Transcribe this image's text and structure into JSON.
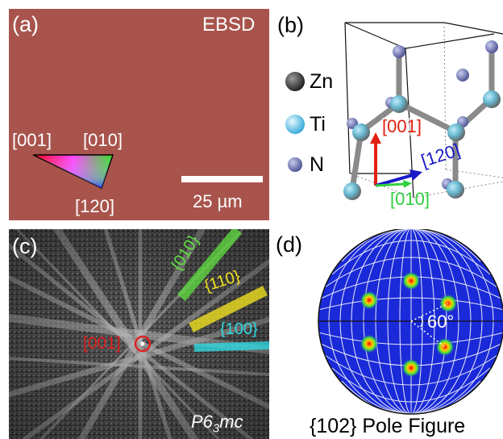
{
  "panel_a": {
    "label": "(a)",
    "tag": "EBSD",
    "ipf_labels": [
      "[001]",
      "[010]",
      "[120]"
    ],
    "scale_bar": "25 µm",
    "colors": {
      "background": "#a8544c",
      "bar": "#ffffff"
    }
  },
  "panel_b": {
    "label": "(b)",
    "legend": [
      {
        "name": "Zn",
        "color": "#3a3a3a"
      },
      {
        "name": "Ti",
        "color": "#58c8e8"
      },
      {
        "name": "N",
        "color": "#6870a8"
      }
    ],
    "axes": [
      {
        "label": "[001]",
        "color": "#e02010"
      },
      {
        "label": "[120]",
        "color": "#1818c8"
      },
      {
        "label": "[010]",
        "color": "#30d040"
      }
    ]
  },
  "panel_c": {
    "label": "(c)",
    "bands": [
      {
        "label": "{010}",
        "color": "#60e040"
      },
      {
        "label": "{110}",
        "color": "#f0e020"
      },
      {
        "label": "{100}",
        "color": "#30d8e0"
      }
    ],
    "pole_label": "[001]",
    "pole_color": "#e02020",
    "space_group": {
      "base": "P6",
      "sub": "3",
      "tail": "mc"
    }
  },
  "panel_d": {
    "label": "(d)",
    "angle": "60°",
    "caption": "{102} Pole Figure",
    "colors": {
      "disk": "#1a2ad8",
      "grid": "#ffffff"
    }
  }
}
